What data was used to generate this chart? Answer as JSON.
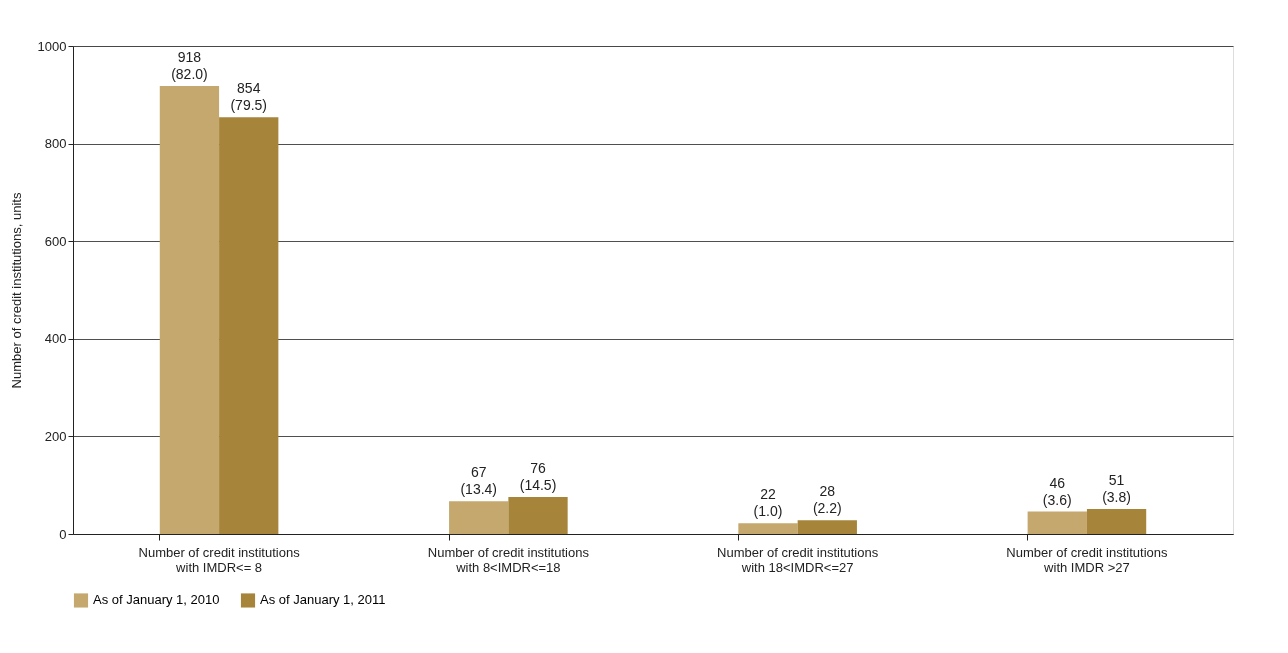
{
  "chart_data": {
    "type": "bar",
    "ylabel": "Number of credit institutions, units",
    "categories": [
      "Number of credit institutions\nwith IMDR<= 8",
      "Number of credit institutions\nwith 8<IMDR<=18",
      "Number of credit institutions\nwith 18<IMDR<=27",
      "Number of credit institutions\nwith IMDR >27"
    ],
    "series": [
      {
        "name": "As of January 1, 2010",
        "color": "#c4a86e",
        "values": [
          918,
          67,
          22,
          46
        ],
        "value_labels": [
          "918\n(82.0)",
          "67\n(13.4)",
          "22\n(1.0)",
          "46\n(3.6)"
        ]
      },
      {
        "name": "As of January 1, 2011",
        "color": "#a6853a",
        "values": [
          854,
          76,
          28,
          51
        ],
        "value_labels": [
          "854\n(79.5)",
          "76\n(14.5)",
          "28\n(2.2)",
          "51\n(3.8)"
        ]
      }
    ],
    "ylim": [
      0,
      1000
    ],
    "yticks": [
      0,
      200,
      400,
      600,
      800,
      1000
    ],
    "grid": "y",
    "legend": "bottom"
  }
}
